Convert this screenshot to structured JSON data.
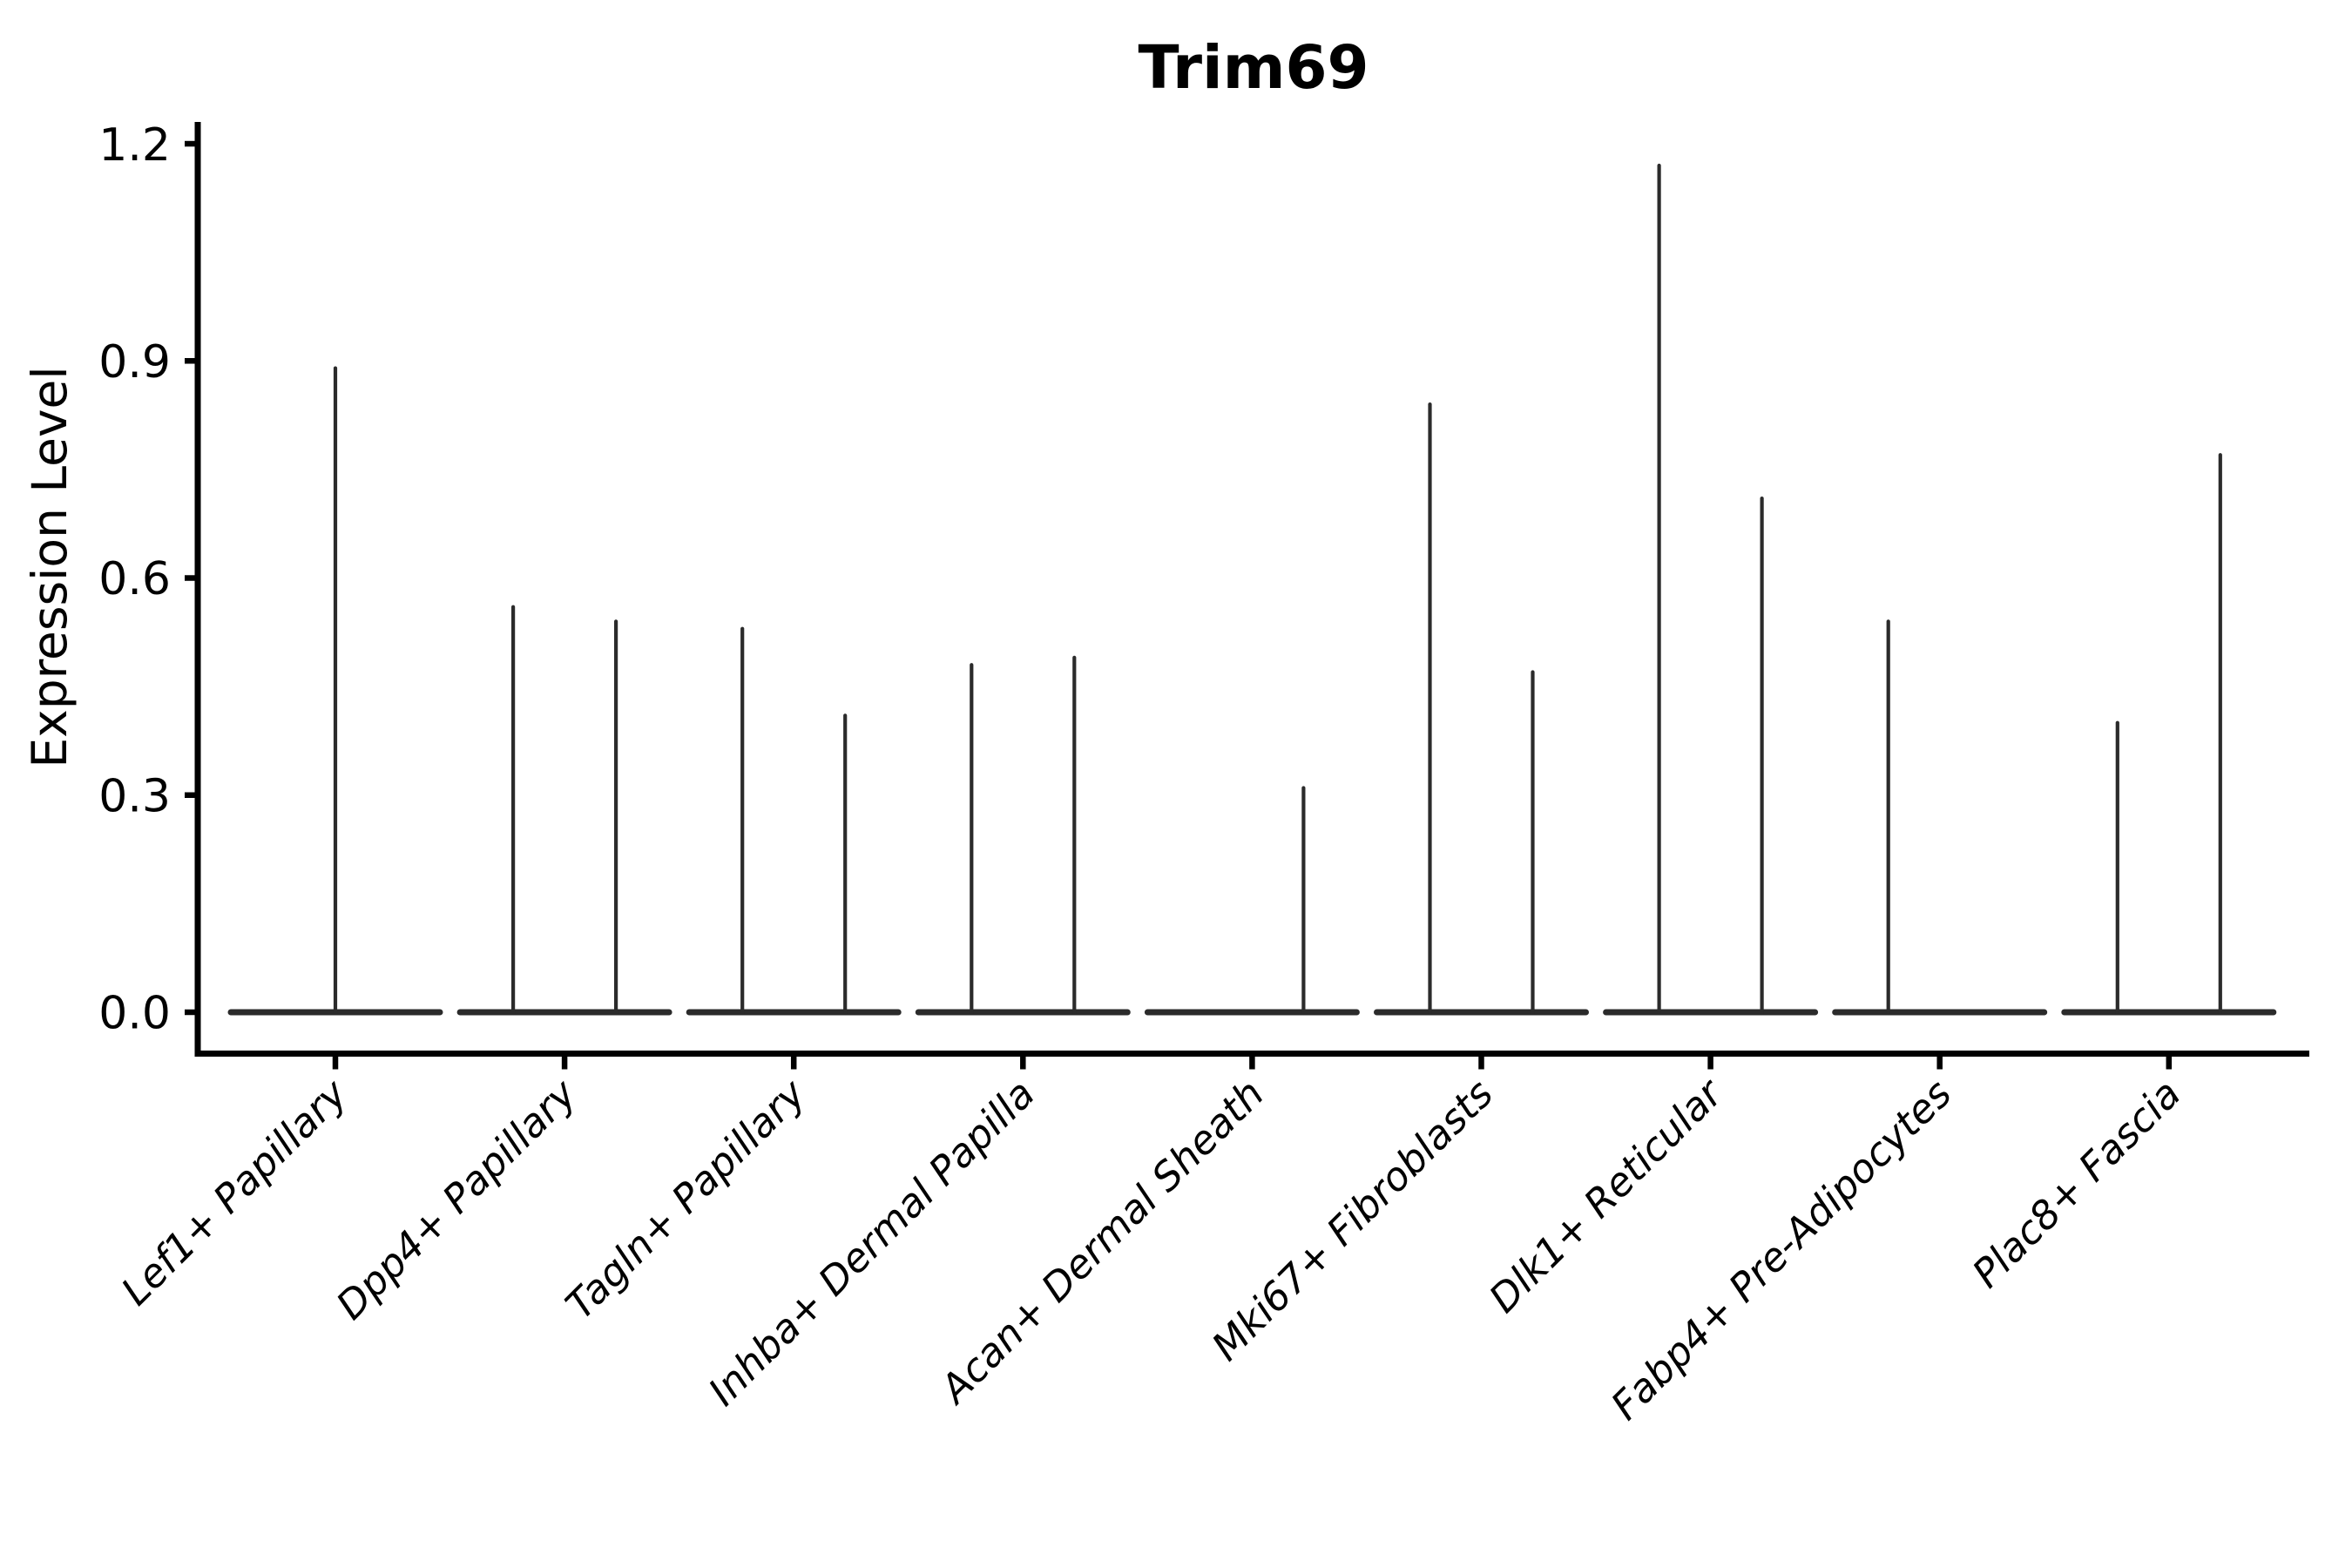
{
  "figure": {
    "title": "Trim69",
    "background_color": "#ffffff",
    "axis_color": "#000000",
    "text_color": "#000000",
    "violin_color": "#2b2b2b"
  },
  "chart_data": {
    "type": "violin",
    "title": "Trim69",
    "xlabel": "",
    "ylabel": "Expression Level",
    "ylim": [
      0.0,
      1.2
    ],
    "yticks": [
      {
        "value": 0.0,
        "label": "0.0"
      },
      {
        "value": 0.3,
        "label": "0.3"
      },
      {
        "value": 0.6,
        "label": "0.6"
      },
      {
        "value": 0.9,
        "label": "0.9"
      },
      {
        "value": 1.2,
        "label": "1.2"
      }
    ],
    "grid": false,
    "legend": null,
    "categories": [
      "Lef1+ Papillary",
      "Dpp4+ Papillary",
      "Tagln+ Papillary",
      "Inhba+ Dermal Papilla",
      "Acan+ Dermal Sheath",
      "Mki67+ Fibroblasts",
      "Dlk1+ Reticular",
      "Fabp4+ Pre-Adipocytes",
      "Plac8+ Fascia"
    ],
    "violin_description": "Each category shows a flat collapsed violin body at expression 0 with thin needle-like density spikes; spikes are dodged left/right within a category (or centered when single).",
    "violins": [
      {
        "category_index": 0,
        "category": "Lef1+ Papillary",
        "group_position": "center",
        "min_expression": 0.0,
        "max_expression": 0.89
      },
      {
        "category_index": 1,
        "category": "Dpp4+ Papillary",
        "group_position": "left",
        "min_expression": 0.0,
        "max_expression": 0.56
      },
      {
        "category_index": 1,
        "category": "Dpp4+ Papillary",
        "group_position": "right",
        "min_expression": 0.0,
        "max_expression": 0.54
      },
      {
        "category_index": 2,
        "category": "Tagln+ Papillary",
        "group_position": "left",
        "min_expression": 0.0,
        "max_expression": 0.53
      },
      {
        "category_index": 2,
        "category": "Tagln+ Papillary",
        "group_position": "right",
        "min_expression": 0.0,
        "max_expression": 0.41
      },
      {
        "category_index": 3,
        "category": "Inhba+ Dermal Papilla",
        "group_position": "left",
        "min_expression": 0.0,
        "max_expression": 0.48
      },
      {
        "category_index": 3,
        "category": "Inhba+ Dermal Papilla",
        "group_position": "right",
        "min_expression": 0.0,
        "max_expression": 0.49
      },
      {
        "category_index": 4,
        "category": "Acan+ Dermal Sheath",
        "group_position": "right",
        "min_expression": 0.0,
        "max_expression": 0.31
      },
      {
        "category_index": 5,
        "category": "Mki67+ Fibroblasts",
        "group_position": "left",
        "min_expression": 0.0,
        "max_expression": 0.84
      },
      {
        "category_index": 5,
        "category": "Mki67+ Fibroblasts",
        "group_position": "right",
        "min_expression": 0.0,
        "max_expression": 0.47
      },
      {
        "category_index": 6,
        "category": "Dlk1+ Reticular",
        "group_position": "left",
        "min_expression": 0.0,
        "max_expression": 1.17
      },
      {
        "category_index": 6,
        "category": "Dlk1+ Reticular",
        "group_position": "right",
        "min_expression": 0.0,
        "max_expression": 0.71
      },
      {
        "category_index": 7,
        "category": "Fabp4+ Pre-Adipocytes",
        "group_position": "left",
        "min_expression": 0.0,
        "max_expression": 0.54
      },
      {
        "category_index": 8,
        "category": "Plac8+ Fascia",
        "group_position": "left",
        "min_expression": 0.0,
        "max_expression": 0.4
      },
      {
        "category_index": 8,
        "category": "Plac8+ Fascia",
        "group_position": "right",
        "min_expression": 0.0,
        "max_expression": 0.77
      }
    ]
  }
}
